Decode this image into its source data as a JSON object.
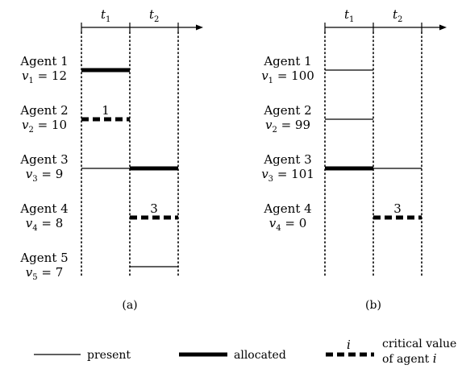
{
  "panels": [
    {
      "caption": "(a)",
      "time_labels": [
        "t",
        "t"
      ],
      "time_subs": [
        "1",
        "2"
      ],
      "agents": [
        {
          "name": "Agent 1",
          "value_var": "v",
          "value_sub": "1",
          "value_text": " = 12",
          "t1": "allocated",
          "t2": "none",
          "crit": ""
        },
        {
          "name": "Agent 2",
          "value_var": "v",
          "value_sub": "2",
          "value_text": " = 10",
          "t1": "critical",
          "t2": "none",
          "crit": "1"
        },
        {
          "name": "Agent 3",
          "value_var": "v",
          "value_sub": "3",
          "value_text": " = 9",
          "t1": "present",
          "t2": "allocated",
          "crit": ""
        },
        {
          "name": "Agent 4",
          "value_var": "v",
          "value_sub": "4",
          "value_text": " = 8",
          "t1": "none",
          "t2": "critical",
          "crit": "3"
        },
        {
          "name": "Agent 5",
          "value_var": "v",
          "value_sub": "5",
          "value_text": " = 7",
          "t1": "none",
          "t2": "present",
          "crit": ""
        }
      ]
    },
    {
      "caption": "(b)",
      "time_labels": [
        "t",
        "t"
      ],
      "time_subs": [
        "1",
        "2"
      ],
      "agents": [
        {
          "name": "Agent 1",
          "value_var": "v",
          "value_sub": "1",
          "value_text": " = 100",
          "t1": "present",
          "t2": "none",
          "crit": ""
        },
        {
          "name": "Agent 2",
          "value_var": "v",
          "value_sub": "2",
          "value_text": " = 99",
          "t1": "present",
          "t2": "none",
          "crit": ""
        },
        {
          "name": "Agent 3",
          "value_var": "v",
          "value_sub": "3",
          "value_text": " = 101",
          "t1": "allocated",
          "t2": "present",
          "crit": ""
        },
        {
          "name": "Agent 4",
          "value_var": "v",
          "value_sub": "4",
          "value_text": " = 0",
          "t1": "none",
          "t2": "critical",
          "crit": "3"
        }
      ]
    }
  ],
  "legend": {
    "present": "present",
    "allocated": "allocated",
    "critical_symbol": "i",
    "critical_line1": "critical value",
    "critical_line2_prefix": "of agent ",
    "critical_line2_var": "i"
  }
}
